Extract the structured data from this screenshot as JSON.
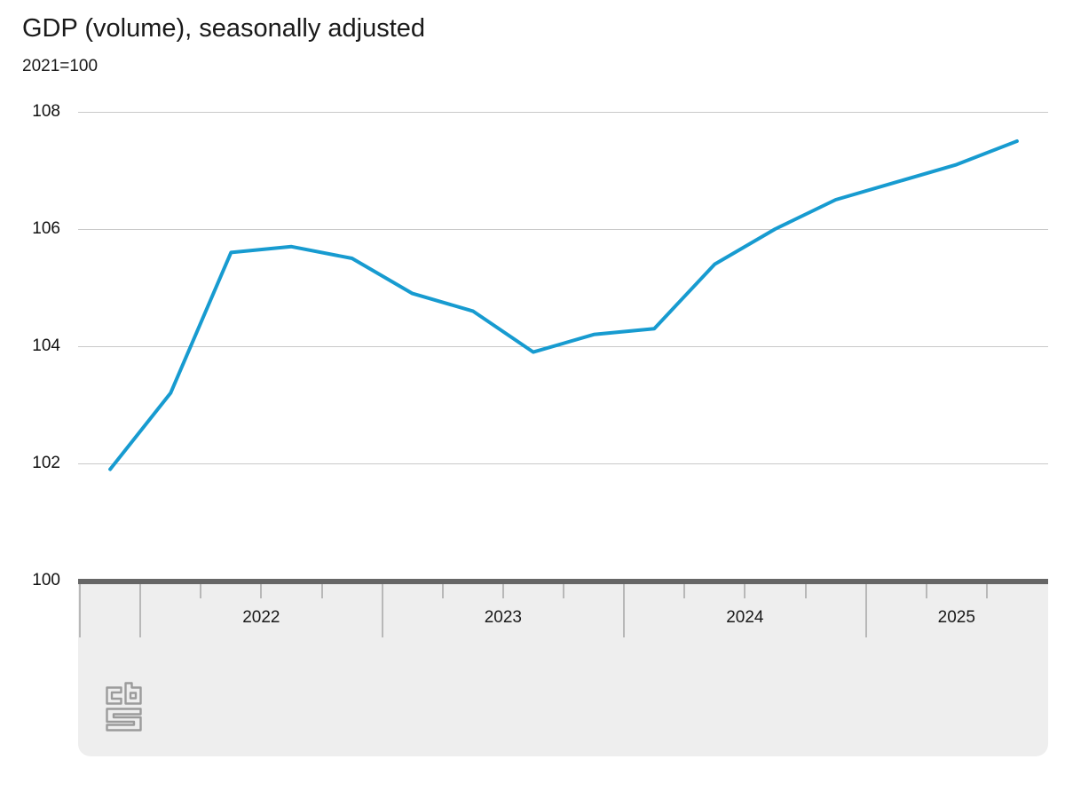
{
  "page": {
    "background": "#ffffff"
  },
  "chart_data": {
    "type": "line",
    "title": "GDP (volume), seasonally adjusted",
    "subtitle": "2021=100",
    "categories": [
      "2021 Q4",
      "2022 Q1",
      "2022 Q2",
      "2022 Q3",
      "2022 Q4",
      "2023 Q1",
      "2023 Q2",
      "2023 Q3",
      "2023 Q4",
      "2024 Q1",
      "2024 Q2",
      "2024 Q3",
      "2024 Q4",
      "2025 Q1",
      "2025 Q2",
      "2025 Q3"
    ],
    "values": [
      101.9,
      103.2,
      105.6,
      105.7,
      105.5,
      104.9,
      104.6,
      103.9,
      104.2,
      104.3,
      105.4,
      106.0,
      106.5,
      106.8,
      107.1,
      107.5
    ],
    "x_year_labels": [
      "2022",
      "2023",
      "2024",
      "2025"
    ],
    "y_ticks": [
      108,
      106,
      104,
      102,
      100
    ],
    "ylim": [
      100,
      108
    ],
    "grid": "horizontal-only",
    "legend": "none",
    "line_color": "#179BD0",
    "gridline_color": "#c9c9c9",
    "axis_bar_color": "#666666",
    "tick_color": "#b8b8b8",
    "panel_color": "#eeeeee",
    "branding": "CBS"
  }
}
